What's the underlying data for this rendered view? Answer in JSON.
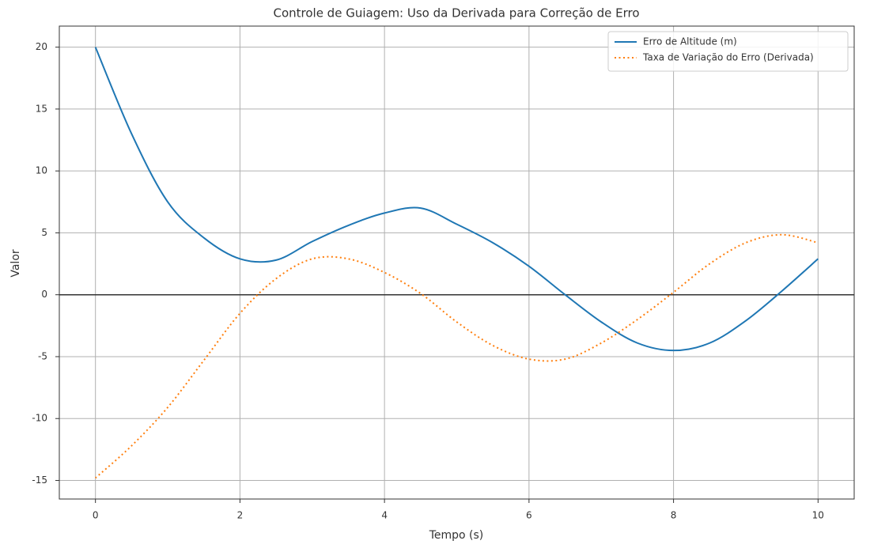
{
  "chart_data": {
    "type": "line",
    "title": "Controle de Guiagem: Uso da Derivada para Correção de Erro",
    "xlabel": "Tempo (s)",
    "ylabel": "Valor",
    "x": [
      0,
      0.5,
      1,
      1.5,
      2,
      2.5,
      3,
      3.5,
      4,
      4.5,
      5,
      5.5,
      6,
      6.5,
      7,
      7.5,
      8,
      8.5,
      9,
      9.5,
      10
    ],
    "series": [
      {
        "name": "Erro de Altitude (m)",
        "color": "#1f77b4",
        "dash": "solid",
        "values": [
          20,
          13,
          7.5,
          4.6,
          2.9,
          2.8,
          4.3,
          5.6,
          6.6,
          7.0,
          5.7,
          4.2,
          2.3,
          0,
          -2.2,
          -3.9,
          -4.5,
          -3.9,
          -2.1,
          0.3,
          2.9
        ]
      },
      {
        "name": "Taxa de Variação do Erro (Derivada)",
        "color": "#ff7f0e",
        "dash": "dotted",
        "values": [
          -14.8,
          -12.2,
          -9.1,
          -5.3,
          -1.5,
          1.3,
          2.9,
          2.9,
          1.8,
          0.1,
          -2.2,
          -4.1,
          -5.2,
          -5.2,
          -3.9,
          -2.0,
          0.2,
          2.5,
          4.2,
          4.85,
          4.2
        ]
      }
    ],
    "reference_line": 0,
    "xlim": [
      -0.5,
      10.5
    ],
    "ylim": [
      -16.5,
      21.7
    ],
    "xticks": [
      0,
      2,
      4,
      6,
      8,
      10
    ],
    "yticks": [
      -15,
      -10,
      -5,
      0,
      5,
      10,
      15,
      20
    ],
    "grid": true,
    "legend": "upper right"
  }
}
